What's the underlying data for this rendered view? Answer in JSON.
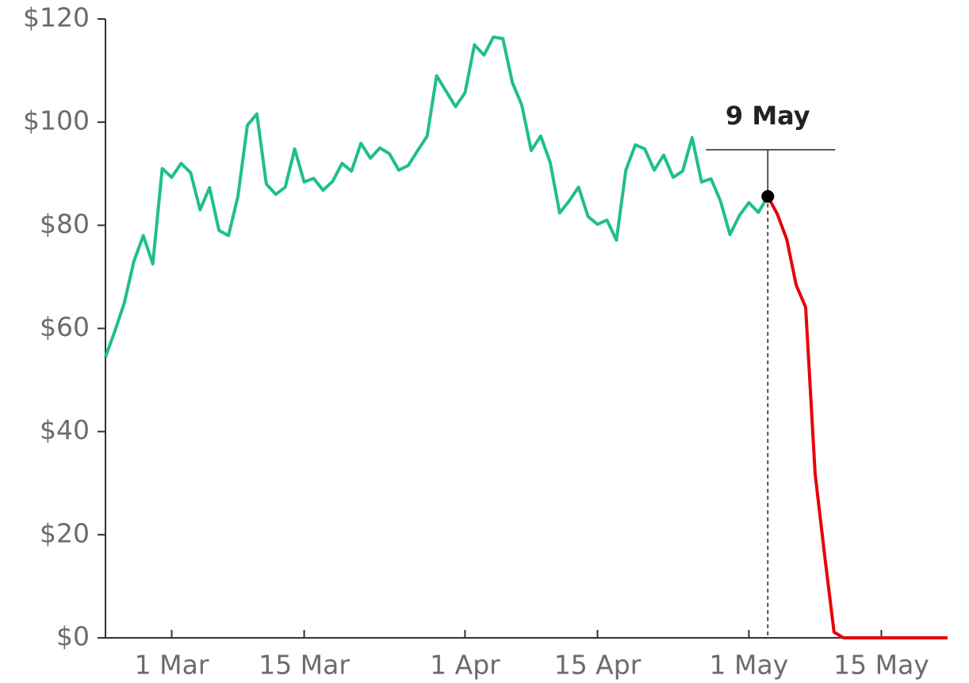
{
  "chart_data": {
    "type": "line",
    "x": [
      "02-22",
      "02-23",
      "02-24",
      "02-25",
      "02-26",
      "02-27",
      "02-28",
      "03-01",
      "03-02",
      "03-03",
      "03-04",
      "03-05",
      "03-06",
      "03-07",
      "03-08",
      "03-09",
      "03-10",
      "03-11",
      "03-12",
      "03-13",
      "03-14",
      "03-15",
      "03-16",
      "03-17",
      "03-18",
      "03-19",
      "03-20",
      "03-21",
      "03-22",
      "03-23",
      "03-24",
      "03-25",
      "03-26",
      "03-27",
      "03-28",
      "03-29",
      "03-30",
      "03-31",
      "04-01",
      "04-02",
      "04-03",
      "04-04",
      "04-05",
      "04-06",
      "04-07",
      "04-08",
      "04-09",
      "04-10",
      "04-11",
      "04-12",
      "04-13",
      "04-14",
      "04-15",
      "04-16",
      "04-17",
      "04-18",
      "04-19",
      "04-20",
      "04-21",
      "04-22",
      "04-23",
      "04-24",
      "04-25",
      "04-26",
      "04-27",
      "04-28",
      "04-29",
      "04-30",
      "05-01",
      "05-02",
      "05-03",
      "05-04",
      "05-05",
      "05-06",
      "05-07",
      "05-08",
      "05-09",
      "05-10",
      "05-11",
      "05-12",
      "05-13",
      "05-14",
      "05-15",
      "05-16",
      "05-17",
      "05-18",
      "05-19",
      "05-20",
      "05-21",
      "05-22"
    ],
    "series": [
      {
        "color": "#1fbf8b",
        "values": [
          54.5,
          59.5,
          65,
          73,
          78,
          72.5,
          91,
          89.3,
          92,
          90.2,
          83,
          87.3,
          79,
          78,
          85.6,
          99.4,
          101.6,
          88,
          86,
          87.4,
          94.8,
          88.4,
          89.1,
          86.8,
          88.5,
          92,
          90.5,
          95.9,
          93,
          95,
          93.9,
          90.7,
          91.6,
          94.5,
          97.3,
          109,
          106,
          103,
          105.7,
          115,
          113,
          116.5,
          116.2,
          107.7,
          103.3,
          94.5,
          97.3,
          92.2,
          82.4,
          84.7,
          87.4,
          81.7,
          80.2,
          81,
          77.1,
          90.7,
          95.6,
          94.8,
          90.7,
          93.6,
          89.3,
          90.5,
          97,
          88.4,
          89,
          84.7,
          78.2,
          81.9,
          84.4,
          82.5,
          85.6,
          null,
          null,
          null,
          null,
          null,
          null,
          null,
          null,
          null,
          null,
          null,
          null,
          null,
          null,
          null,
          null,
          null,
          null,
          null
        ]
      },
      {
        "color": "#e8000b",
        "values": [
          null,
          null,
          null,
          null,
          null,
          null,
          null,
          null,
          null,
          null,
          null,
          null,
          null,
          null,
          null,
          null,
          null,
          null,
          null,
          null,
          null,
          null,
          null,
          null,
          null,
          null,
          null,
          null,
          null,
          null,
          null,
          null,
          null,
          null,
          null,
          null,
          null,
          null,
          null,
          null,
          null,
          null,
          null,
          null,
          null,
          null,
          null,
          null,
          null,
          null,
          null,
          null,
          null,
          null,
          null,
          null,
          null,
          null,
          null,
          null,
          null,
          null,
          null,
          null,
          null,
          null,
          null,
          null,
          null,
          null,
          85.6,
          82.2,
          77.3,
          68.4,
          64.1,
          31.8,
          16.1,
          1.1,
          0,
          0,
          0,
          0,
          0,
          0,
          0,
          0,
          0,
          0,
          0,
          0
        ]
      }
    ],
    "annotation": {
      "label": "9 May",
      "x": "05-03"
    },
    "xlim": [
      "02-22",
      "05-22"
    ],
    "xticks": [
      {
        "value": "03-01",
        "label": "1 Mar"
      },
      {
        "value": "03-15",
        "label": "15 Mar"
      },
      {
        "value": "04-01",
        "label": "1 Apr"
      },
      {
        "value": "04-15",
        "label": "15 Apr"
      },
      {
        "value": "05-01",
        "label": "1 May"
      },
      {
        "value": "05-15",
        "label": "15 May"
      }
    ],
    "ylim": [
      0,
      120
    ],
    "yticks": [
      {
        "value": 0,
        "label": "$0"
      },
      {
        "value": 20,
        "label": "$20"
      },
      {
        "value": 40,
        "label": "$40"
      },
      {
        "value": 60,
        "label": "$60"
      },
      {
        "value": 80,
        "label": "$80"
      },
      {
        "value": 100,
        "label": "$100"
      },
      {
        "value": 120,
        "label": "$120"
      }
    ]
  }
}
